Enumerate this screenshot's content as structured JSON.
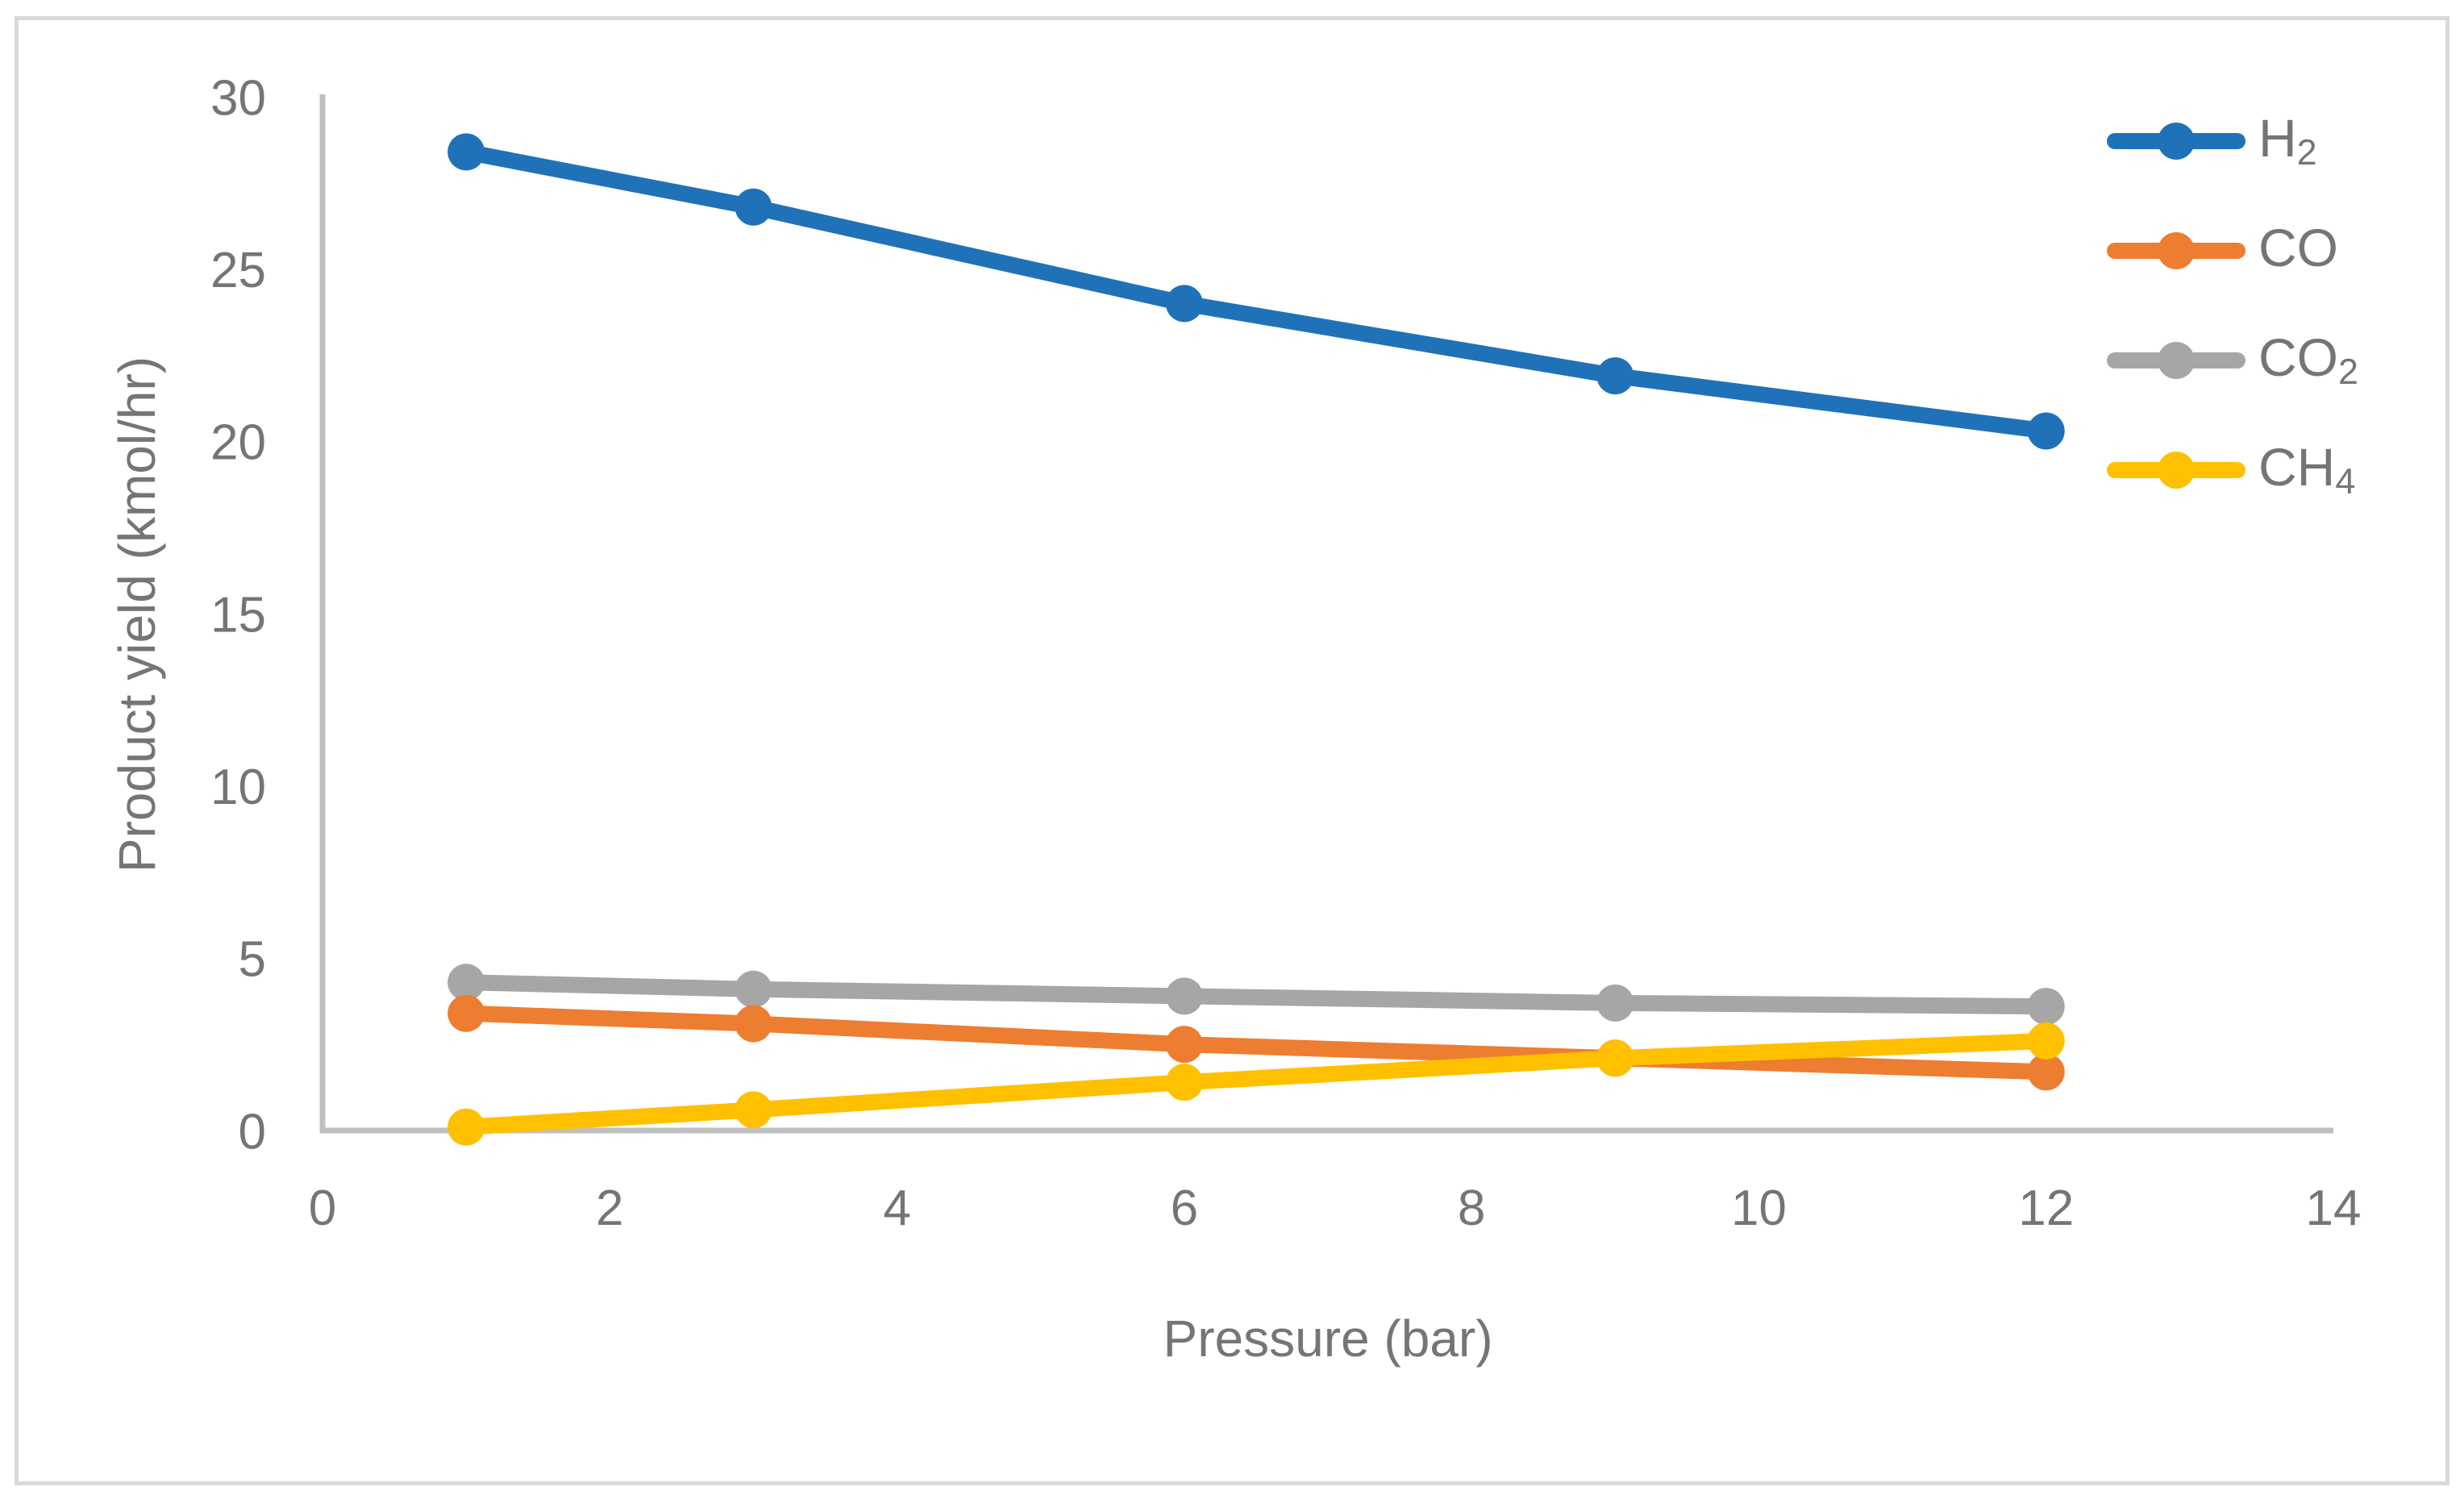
{
  "figure": {
    "background": "#FFFFFF",
    "border_color": "#D9D9D9"
  },
  "chart_data": {
    "type": "line",
    "xlabel": "Pressure (bar)",
    "ylabel": "Product yield (kmol/hr)",
    "x": [
      1,
      3,
      6,
      9,
      12
    ],
    "series": [
      {
        "name": "h2",
        "label_main": "H",
        "label_sub": "2",
        "color": "#2072B8",
        "values": [
          28.4,
          26.8,
          24.0,
          21.9,
          20.3
        ]
      },
      {
        "name": "co",
        "label_main": "CO",
        "label_sub": "",
        "color": "#ED7D31",
        "values": [
          3.4,
          3.1,
          2.5,
          2.1,
          1.7
        ]
      },
      {
        "name": "co2",
        "label_main": "CO",
        "label_sub": "2",
        "color": "#A6A6A6",
        "values": [
          4.3,
          4.1,
          3.9,
          3.7,
          3.6
        ]
      },
      {
        "name": "ch4",
        "label_main": "CH",
        "label_sub": "4",
        "color": "#FFC000",
        "values": [
          0.1,
          0.6,
          1.4,
          2.1,
          2.6
        ]
      }
    ],
    "xlim": [
      0,
      14
    ],
    "ylim": [
      0,
      30
    ],
    "x_ticks": [
      0,
      2,
      4,
      6,
      8,
      10,
      12,
      14
    ],
    "y_ticks": [
      0,
      5,
      10,
      15,
      20,
      25,
      30
    ],
    "grid": false,
    "legend_position": "top-right",
    "axis_color": "#BFBFBF",
    "tick_label_color": "#757575"
  }
}
